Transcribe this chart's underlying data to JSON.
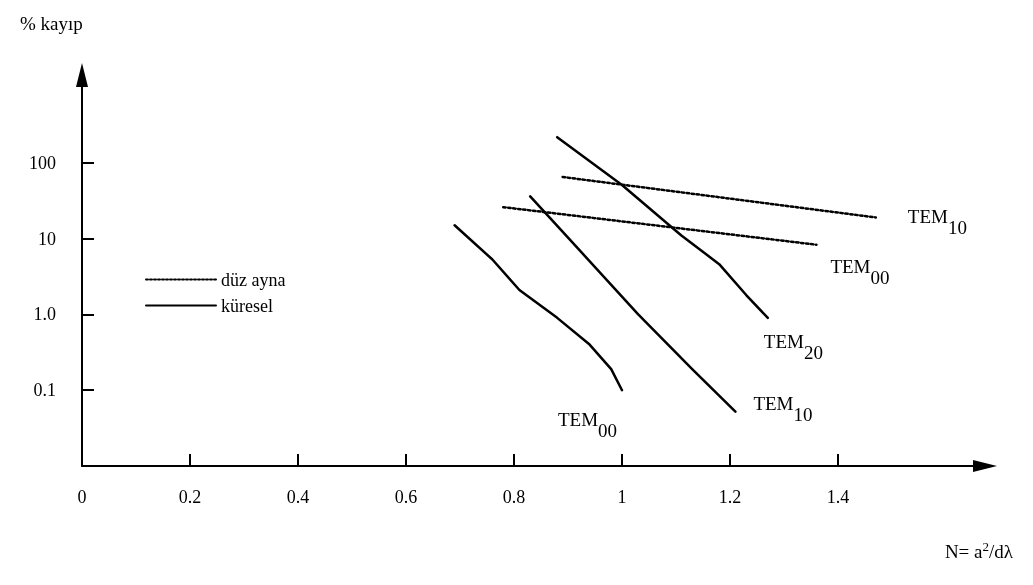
{
  "chart_data": {
    "type": "line",
    "xlabel": "N= a$^{2}$/dλ",
    "ylabel": "% kayıp",
    "log": "y",
    "xlim": [
      0,
      1.65
    ],
    "ylim": [
      0.01,
      1000
    ],
    "xticks": [
      0,
      0.2,
      0.4,
      0.6,
      0.8,
      1.0,
      1.2,
      1.4
    ],
    "yticks": [
      0.1,
      {
        "value": 1,
        "label": "1.0"
      },
      10,
      100
    ],
    "grid": false,
    "legend": "left",
    "marker": "none",
    "series": [
      {
        "name": "düz ayna",
        "color": "#000000",
        "line_style": "dotted",
        "x": [
          0.78,
          1.36
        ],
        "values": [
          26,
          8.3
        ]
      },
      {
        "color": "#000000",
        "line_style": "dotted",
        "x": [
          0.89,
          1.47
        ],
        "values": [
          65,
          19
        ]
      },
      {
        "name": "küresel",
        "color": "#000000",
        "line_style": "solid",
        "x": [
          0.69,
          0.76,
          0.81,
          0.88,
          0.94,
          0.98,
          1.0
        ],
        "values": [
          15,
          5.3,
          2.1,
          0.9,
          0.4,
          0.19,
          0.1
        ]
      },
      {
        "color": "#000000",
        "line_style": "solid",
        "x": [
          0.83,
          0.92,
          1.03,
          1.13,
          1.21
        ],
        "values": [
          36,
          7.2,
          1.0,
          0.19,
          0.052
        ]
      },
      {
        "color": "#000000",
        "line_style": "solid",
        "x": [
          0.88,
          1.0,
          1.11,
          1.18,
          1.23,
          1.27
        ],
        "values": [
          218,
          51,
          11,
          4.6,
          1.8,
          0.9
        ]
      }
    ],
    "annotations": [
      "TEM$_{00}$",
      "TEM$_{10}$",
      "TEM$_{00}$",
      "TEM$_{10}$",
      "TEM$_{20}$"
    ]
  }
}
